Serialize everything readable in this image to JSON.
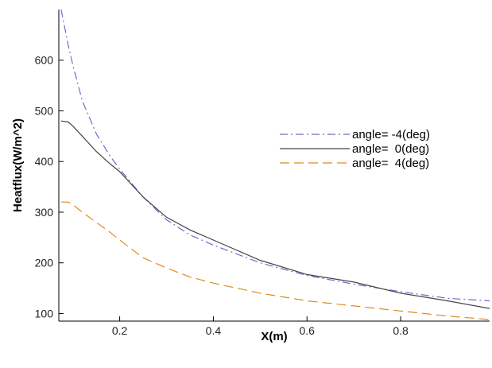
{
  "chart_data": {
    "type": "line",
    "title": "",
    "xlabel": "X(m)",
    "ylabel": "Heatflux(W/m^2)",
    "xlim": [
      0.07,
      0.99
    ],
    "ylim": [
      85,
      700
    ],
    "xticks": [
      0.2,
      0.4,
      0.6,
      0.8
    ],
    "xtick_labels": [
      "0.2",
      "0.4",
      "0.6",
      "0.8"
    ],
    "yticks": [
      100,
      200,
      300,
      400,
      500,
      600
    ],
    "ytick_labels": [
      "100",
      "200",
      "300",
      "400",
      "500",
      "600"
    ],
    "grid": false,
    "legend_position": "right-middle",
    "series": [
      {
        "name": "angle= -4(deg)",
        "color": "#6b6bd1",
        "dash": "dash-dot",
        "x": [
          0.075,
          0.09,
          0.1,
          0.12,
          0.15,
          0.18,
          0.2,
          0.25,
          0.3,
          0.35,
          0.4,
          0.5,
          0.6,
          0.7,
          0.8,
          0.9,
          0.99
        ],
        "y": [
          700,
          630,
          590,
          520,
          455,
          410,
          385,
          330,
          285,
          255,
          235,
          200,
          175,
          158,
          143,
          130,
          125
        ]
      },
      {
        "name": "angle=  0(deg)",
        "color": "#444444",
        "dash": "solid",
        "x": [
          0.075,
          0.09,
          0.1,
          0.12,
          0.15,
          0.18,
          0.2,
          0.25,
          0.3,
          0.35,
          0.4,
          0.5,
          0.6,
          0.7,
          0.8,
          0.9,
          0.99
        ],
        "y": [
          480,
          478,
          470,
          450,
          420,
          395,
          380,
          330,
          290,
          265,
          245,
          205,
          177,
          162,
          140,
          125,
          110
        ]
      },
      {
        "name": "angle=  4(deg)",
        "color": "#e08a1e",
        "dash": "dashed",
        "x": [
          0.075,
          0.09,
          0.1,
          0.12,
          0.15,
          0.18,
          0.2,
          0.25,
          0.3,
          0.35,
          0.4,
          0.5,
          0.6,
          0.7,
          0.8,
          0.9,
          0.99
        ],
        "y": [
          320,
          320,
          315,
          300,
          280,
          260,
          245,
          210,
          190,
          172,
          160,
          140,
          125,
          115,
          105,
          95,
          88
        ]
      }
    ]
  }
}
